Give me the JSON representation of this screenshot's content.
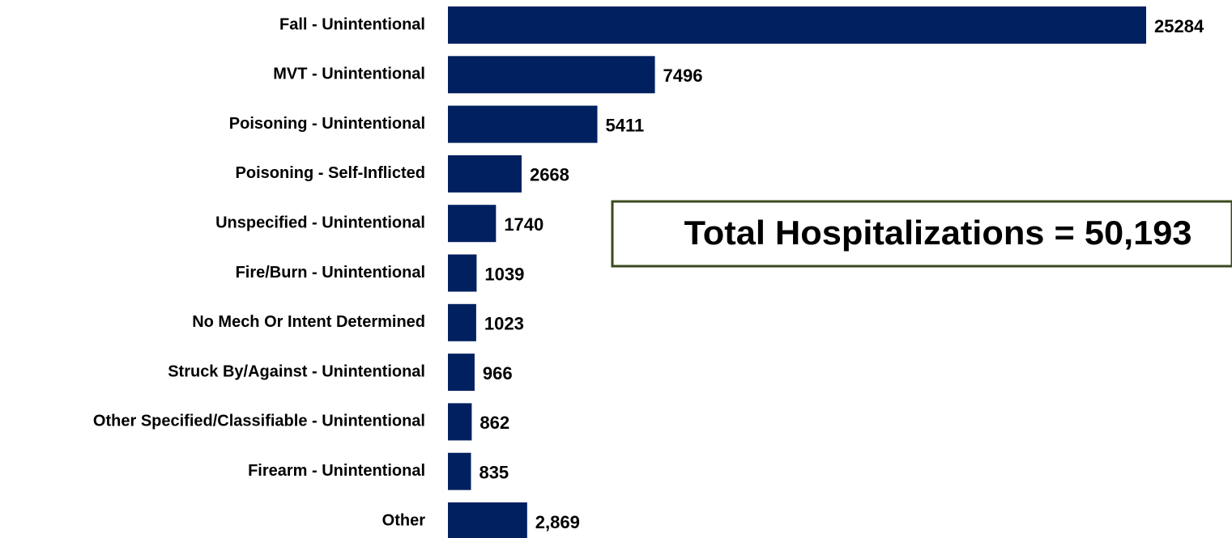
{
  "chart_data": {
    "type": "bar",
    "orientation": "horizontal",
    "categories": [
      "Fall - Unintentional",
      "MVT - Unintentional",
      "Poisoning - Unintentional",
      "Poisoning - Self-Inflicted",
      "Unspecified - Unintentional",
      "Fire/Burn - Unintentional",
      "No Mech Or Intent Determined",
      "Struck By/Against - Unintentional",
      "Other Specified/Classifiable - Unintentional",
      "Firearm - Unintentional",
      "Other"
    ],
    "values": [
      25284,
      7496,
      5411,
      2668,
      1740,
      1039,
      1023,
      966,
      862,
      835,
      2869
    ],
    "value_labels": [
      "25284",
      "7496",
      "5411",
      "2668",
      "1740",
      "1039",
      "1023",
      "966",
      "862",
      "835",
      "2,869"
    ],
    "color": "#002060",
    "annotation": "Total Hospitalizations = 50,193"
  }
}
